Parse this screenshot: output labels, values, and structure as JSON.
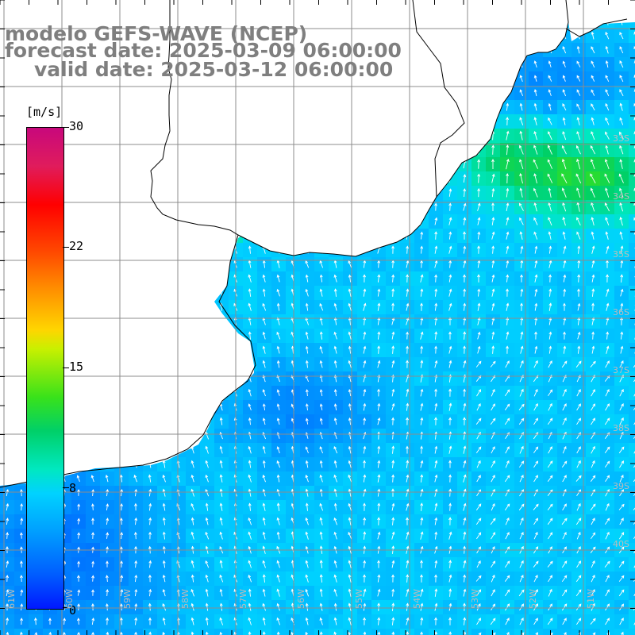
{
  "title": {
    "line1": "modelo GEFS-WAVE (NCEP)",
    "line2": "forecast date: 2025-03-09 06:00:00",
    "line3": "valid date: 2025-03-12 06:00:00"
  },
  "colorbar": {
    "unit": "[m/s]",
    "labels": [
      "30",
      "22",
      "15",
      "8",
      "0"
    ],
    "colors": [
      "#c8087c",
      "#ff0000",
      "#ff8a00",
      "#ffd500",
      "#39e21a",
      "#00e8c0",
      "#009eff",
      "#0018ff"
    ]
  },
  "axes": {
    "lon_labels": [
      "61W",
      "60W",
      "59W",
      "58W",
      "57W",
      "56W",
      "55W",
      "54W",
      "53W",
      "52W",
      "51W"
    ],
    "lat_labels": [
      "33S",
      "34S",
      "35S",
      "36S",
      "37S",
      "38S",
      "39S",
      "40S"
    ]
  },
  "map": {
    "land_color": "#ffffff",
    "grid_color": "#8c8c8c",
    "coast_color": "#000000",
    "arrow_color": "#ffffff"
  }
}
